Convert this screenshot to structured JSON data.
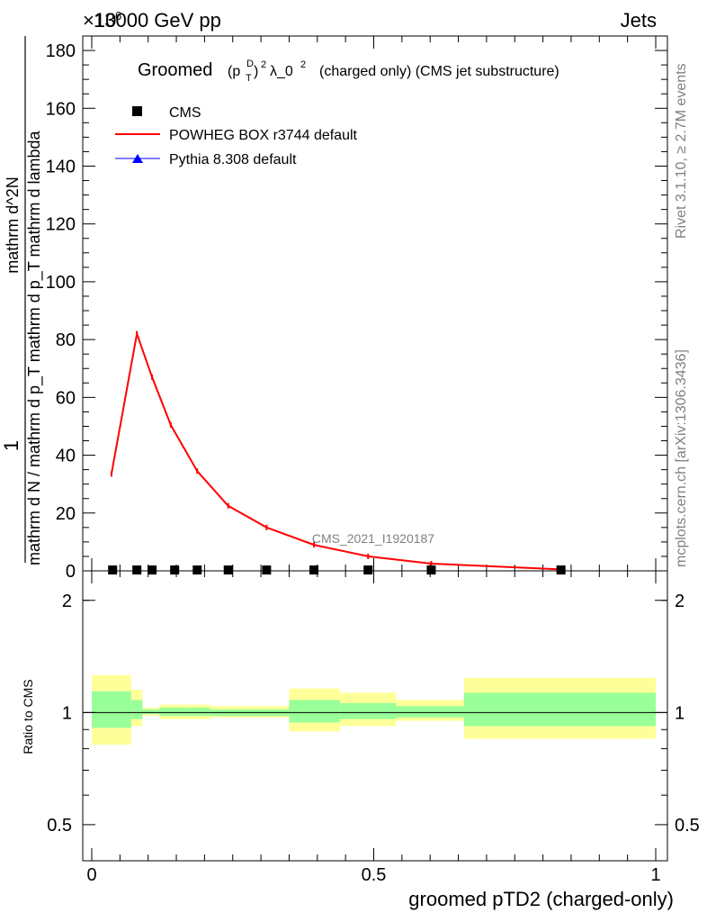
{
  "header": {
    "left": "13000 GeV pp",
    "right": "Jets",
    "exponent": "×10"
  },
  "side_labels": {
    "rivet": "Rivet 3.1.10, ≥ 2.7M events",
    "mcplots": "mcplots.cern.ch [arXiv:1306.3436]"
  },
  "chart_data": [
    {
      "type": "line",
      "title_prefix": "Groomed",
      "title_math": "(pTD)2 λ_02",
      "title_suffix": "(charged only) (CMS jet substructure)",
      "ylabel_top": "1",
      "ylabel_bottom": "mathrm d N / mathrm d p_T mathrm d p_T mathrm d lambda",
      "ylabel_numerator": "mathrm d^2N",
      "ylabel_denominator": "mathrm d p_T mathrm d lambda",
      "analysis_label": "CMS_2021_I1920187",
      "ylim": [
        0,
        185
      ],
      "y_ticks": [
        0,
        20,
        40,
        60,
        80,
        100,
        120,
        140,
        160,
        180
      ],
      "y_tick_labels": [
        "0",
        "20",
        "40",
        "60",
        "80",
        "100",
        "120",
        "140",
        "160",
        "180"
      ],
      "xlim": [
        0,
        1
      ],
      "legend_position": "top-left",
      "series": [
        {
          "name": "CMS",
          "color": "#000000",
          "marker": "square",
          "x": [
            0.037,
            0.08,
            0.107,
            0.147,
            0.187,
            0.242,
            0.31,
            0.394,
            0.49,
            0.602,
            0.832
          ],
          "y": [
            0.3,
            0.3,
            0.3,
            0.3,
            0.3,
            0.3,
            0.3,
            0.3,
            0.3,
            0.3,
            0.3
          ]
        },
        {
          "name": "POWHEG BOX r3744 default",
          "color": "#ff0000",
          "marker": "line",
          "x": [
            0.035,
            0.08,
            0.107,
            0.14,
            0.187,
            0.242,
            0.31,
            0.394,
            0.49,
            0.602,
            0.832
          ],
          "y": [
            33.5,
            82,
            67,
            50.5,
            34.5,
            22.5,
            15,
            9,
            5,
            2.5,
            0.5
          ]
        },
        {
          "name": "Pythia 8.308 default",
          "color": "#0000ff",
          "marker": "triangle",
          "x": [],
          "y": []
        }
      ]
    },
    {
      "type": "area",
      "ylabel": "Ratio to CMS",
      "xlabel": "groomed pTD2 (charged-only)",
      "scale": "log",
      "ylim": [
        0.4,
        2.4
      ],
      "y_ticks": [
        0.5,
        1,
        2
      ],
      "y_tick_labels": [
        "0.5",
        "1",
        "2"
      ],
      "xlim": [
        0,
        1
      ],
      "x_ticks": [
        0,
        0.5,
        1
      ],
      "x_tick_labels": [
        "0",
        "0.5",
        "1"
      ],
      "reference": 1,
      "bins": [
        {
          "x0": 0.0,
          "x1": 0.07,
          "yellow": [
            0.82,
            1.26
          ],
          "green": [
            0.91,
            1.14
          ]
        },
        {
          "x0": 0.07,
          "x1": 0.09,
          "yellow": [
            0.92,
            1.15
          ],
          "green": [
            0.96,
            1.08
          ]
        },
        {
          "x0": 0.09,
          "x1": 0.12,
          "yellow": [
            0.98,
            1.03
          ],
          "green": [
            0.99,
            1.02
          ]
        },
        {
          "x0": 0.12,
          "x1": 0.17,
          "yellow": [
            0.96,
            1.05
          ],
          "green": [
            0.98,
            1.03
          ]
        },
        {
          "x0": 0.17,
          "x1": 0.21,
          "yellow": [
            0.96,
            1.05
          ],
          "green": [
            0.98,
            1.03
          ]
        },
        {
          "x0": 0.21,
          "x1": 0.28,
          "yellow": [
            0.97,
            1.04
          ],
          "green": [
            0.98,
            1.02
          ]
        },
        {
          "x0": 0.28,
          "x1": 0.35,
          "yellow": [
            0.97,
            1.04
          ],
          "green": [
            0.98,
            1.02
          ]
        },
        {
          "x0": 0.35,
          "x1": 0.44,
          "yellow": [
            0.89,
            1.16
          ],
          "green": [
            0.94,
            1.08
          ]
        },
        {
          "x0": 0.44,
          "x1": 0.54,
          "yellow": [
            0.92,
            1.13
          ],
          "green": [
            0.96,
            1.06
          ]
        },
        {
          "x0": 0.54,
          "x1": 0.66,
          "yellow": [
            0.95,
            1.08
          ],
          "green": [
            0.97,
            1.04
          ]
        },
        {
          "x0": 0.66,
          "x1": 1.0,
          "yellow": [
            0.85,
            1.24
          ],
          "green": [
            0.92,
            1.13
          ]
        }
      ]
    }
  ]
}
